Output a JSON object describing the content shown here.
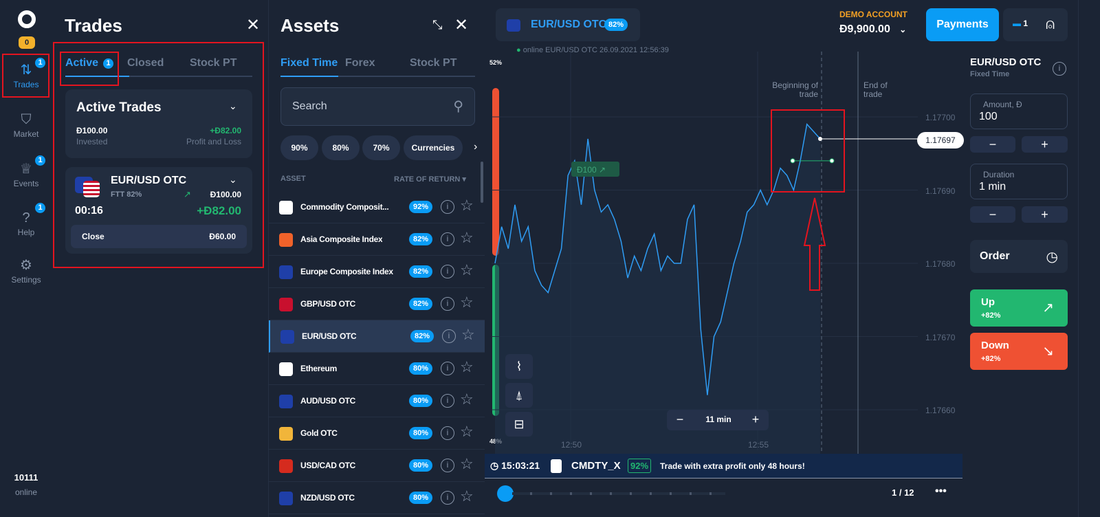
{
  "rail": {
    "coins": "0",
    "items": [
      {
        "label": "Trades",
        "badge": "1"
      },
      {
        "label": "Market"
      },
      {
        "label": "Events",
        "badge": "1"
      },
      {
        "label": "Help",
        "badge": "1"
      },
      {
        "label": "Settings"
      }
    ],
    "online_count": "10111",
    "online_label": "online"
  },
  "trades": {
    "title": "Trades",
    "tabs": [
      {
        "label": "Active",
        "badge": "1"
      },
      {
        "label": "Closed"
      },
      {
        "label": "Stock PT"
      }
    ],
    "summary": {
      "title": "Active Trades",
      "invested": "Đ100.00",
      "invested_label": "Invested",
      "pnl": "+Đ82.00",
      "pnl_label": "Profit and Loss"
    },
    "trade": {
      "asset": "EUR/USD OTC",
      "type": "FTT 82%",
      "amount": "Đ100.00",
      "timer": "00:16",
      "profit": "+Đ82.00",
      "close_label": "Close",
      "close_value": "Đ60.00"
    }
  },
  "assets": {
    "title": "Assets",
    "tabs": [
      "Fixed Time",
      "Forex",
      "Stock PT"
    ],
    "search_placeholder": "Search",
    "filters": [
      "90%",
      "80%",
      "70%",
      "Currencies"
    ],
    "col_asset": "ASSET",
    "col_rate": "RATE OF RETURN",
    "rows": [
      {
        "name": "Commodity Composit...",
        "rate": "92%",
        "color": "#ffffff"
      },
      {
        "name": "Asia Composite Index",
        "rate": "82%",
        "color": "#f0622a"
      },
      {
        "name": "Europe Composite Index",
        "rate": "82%",
        "color": "#1f3fa8"
      },
      {
        "name": "GBP/USD OTC",
        "rate": "82%",
        "color": "#c8102e"
      },
      {
        "name": "EUR/USD OTC",
        "rate": "82%",
        "color": "#1f3fa8"
      },
      {
        "name": "Ethereum",
        "rate": "80%",
        "color": "#ffffff"
      },
      {
        "name": "AUD/USD OTC",
        "rate": "80%",
        "color": "#1f3fa8"
      },
      {
        "name": "Gold OTC",
        "rate": "80%",
        "color": "#f1b53a"
      },
      {
        "name": "USD/CAD OTC",
        "rate": "80%",
        "color": "#d52b1e"
      },
      {
        "name": "NZD/USD OTC",
        "rate": "80%",
        "color": "#1f3fa8"
      }
    ]
  },
  "header": {
    "asset": "EUR/USD OTC",
    "rate": "82%",
    "account_label": "DEMO ACCOUNT",
    "balance": "Đ9,900.00",
    "payments": "Payments",
    "notif_count": "1"
  },
  "chart": {
    "status": "online EUR/USD OTC  26.09.2021 12:56:39",
    "up_pct": "52%",
    "down_pct": "48%",
    "begin_label": "Beginning of trade",
    "end_label": "End of trade",
    "trade_tag": "Đ100",
    "current_price": "1.17697",
    "y_ticks": [
      "1.17700",
      "1.17690",
      "1.17680",
      "1.17670",
      "1.17660"
    ],
    "x_ticks": [
      "12:50",
      "12:55"
    ],
    "zoom": "11 min",
    "prices": [
      1.1768,
      1.17685,
      1.17682,
      1.17688,
      1.17683,
      1.17685,
      1.17679,
      1.17677,
      1.17676,
      1.17679,
      1.17682,
      1.17692,
      1.17694,
      1.17688,
      1.17697,
      1.1769,
      1.17687,
      1.17688,
      1.17686,
      1.17683,
      1.17678,
      1.17681,
      1.17679,
      1.17682,
      1.17684,
      1.17679,
      1.17681,
      1.1768,
      1.1768,
      1.17686,
      1.17688,
      1.17671,
      1.17662,
      1.1767,
      1.17672,
      1.17676,
      1.1768,
      1.17683,
      1.17687,
      1.17688,
      1.1769,
      1.17688,
      1.1769,
      1.17693,
      1.17692,
      1.1769,
      1.17694,
      1.17699,
      1.17698,
      1.17697
    ],
    "entry_price": 1.17694
  },
  "ticker": {
    "time": "15:03:21",
    "symbol": "CMDTY_X",
    "rate": "92%",
    "message": "Trade with extra profit only 48 hours!",
    "page": "1 / 12"
  },
  "order": {
    "asset": "EUR/USD OTC",
    "type": "Fixed Time",
    "amount_label": "Amount, Đ",
    "amount": "100",
    "duration_label": "Duration",
    "duration": "1 min",
    "order_label": "Order",
    "up_label": "Up",
    "up_pct": "+82%",
    "down_label": "Down",
    "down_pct": "+82%",
    "up_color": "#22b770",
    "down_color": "#ef5133"
  }
}
